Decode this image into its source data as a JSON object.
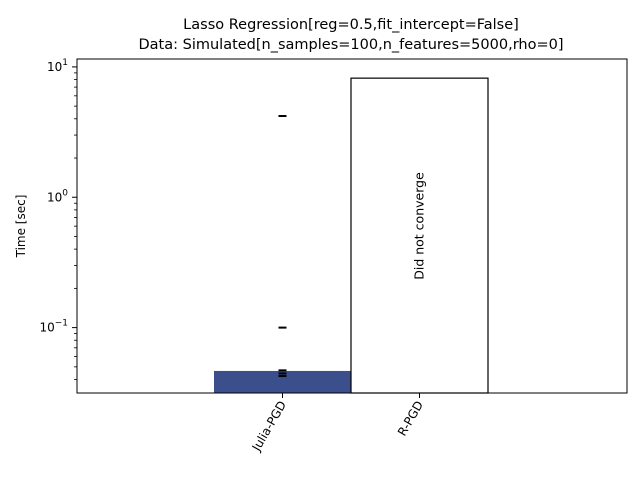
{
  "chart_data": {
    "type": "bar",
    "title": "Lasso Regression[reg=0.5,fit_intercept=False]",
    "subtitle": "Data: Simulated[n_samples=100,n_features=5000,rho=0]",
    "xlabel": "",
    "ylabel": "Time [sec]",
    "yscale": "log",
    "ylim": [
      0.0315,
      11.5
    ],
    "yticks": [
      {
        "value": 0.1,
        "base": "10",
        "exp": "−1"
      },
      {
        "value": 1,
        "base": "10",
        "exp": "0"
      },
      {
        "value": 10,
        "base": "10",
        "exp": "1"
      }
    ],
    "categories": [
      "Julia-PGD",
      "R-PGD"
    ],
    "bars": [
      {
        "category": "Julia-PGD",
        "value": 0.0465,
        "color": "#3b4f8c",
        "filled": true,
        "note": "",
        "run_markers": [
          4.2,
          0.1,
          0.047,
          0.0445,
          0.0425
        ]
      },
      {
        "category": "R-PGD",
        "value": 8.2,
        "color": "#ffffff",
        "filled": false,
        "note": "Did not converge",
        "run_markers": []
      }
    ],
    "grid": false,
    "legend": "none"
  }
}
